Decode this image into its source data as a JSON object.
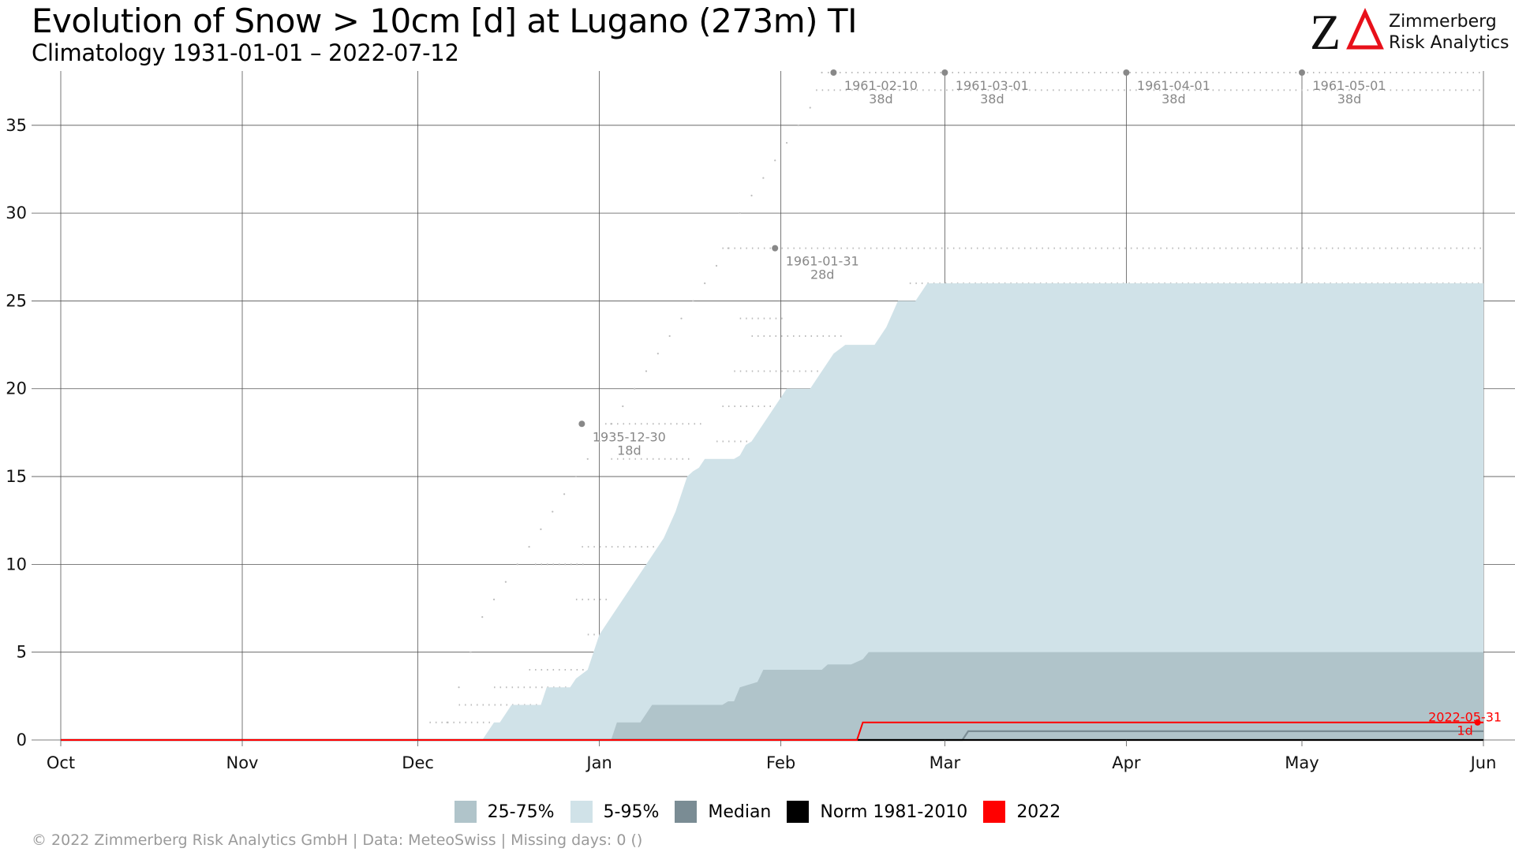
{
  "title": "Evolution of Snow > 10cm [d] at Lugano (273m) TI",
  "subtitle": "Climatology 1931-01-01 – 2022-07-12",
  "logo": {
    "mark": "ZΔ",
    "line1": "Zimmerberg",
    "line2": "Risk Analytics",
    "accent_color": "#e8101a"
  },
  "caption": "©  2022 Zimmerberg Risk Analytics GmbH | Data: MeteoSwiss | Missing days: 0 ()",
  "chart_data": {
    "type": "area",
    "xlabel": "",
    "ylabel": "",
    "x_ticks": [
      "Oct",
      "Nov",
      "Dec",
      "Jan",
      "Feb",
      "Mar",
      "Apr",
      "May",
      "Jun"
    ],
    "x_tick_days": [
      0,
      31,
      61,
      92,
      123,
      151,
      182,
      212,
      243
    ],
    "xlim": [
      0,
      243
    ],
    "ylim": [
      0,
      38
    ],
    "y_ticks": [
      0,
      5,
      10,
      15,
      20,
      25,
      30,
      35
    ],
    "grid": true,
    "legend_position": "bottom",
    "colors": {
      "p5_95": "#d0e2e8",
      "p25_75": "#b0c4ca",
      "median": "#7a8c94",
      "norm": "#000000",
      "current": "#ff0000",
      "annotation": "#888888"
    },
    "legend": [
      {
        "label": "25-75%",
        "color": "#b0c4ca"
      },
      {
        "label": "5-95%",
        "color": "#d0e2e8"
      },
      {
        "label": "Median",
        "color": "#7a8c94"
      },
      {
        "label": "Norm 1981-2010",
        "color": "#000000"
      },
      {
        "label": "2022",
        "color": "#ff0000"
      }
    ],
    "series": [
      {
        "name": "5-95%",
        "kind": "band",
        "x": [
          72,
          73,
          74,
          75,
          76,
          77,
          78,
          79,
          80,
          82,
          83,
          84,
          85,
          87,
          88,
          90,
          91,
          92,
          93,
          95,
          97,
          99,
          101,
          103,
          105,
          107,
          108,
          109,
          110,
          111,
          112,
          113,
          114,
          115,
          116,
          117,
          118,
          119,
          120,
          121,
          122,
          123,
          124,
          125,
          126,
          128,
          129,
          130,
          132,
          134,
          136,
          139,
          141,
          143,
          146,
          148,
          150,
          151,
          152,
          243
        ],
        "lower": [
          0,
          0,
          0,
          0,
          0,
          0,
          0,
          0,
          0,
          0,
          0,
          0,
          0,
          0,
          0,
          0,
          0,
          0,
          0,
          0,
          0,
          0,
          0,
          0,
          0,
          0,
          0,
          0,
          0,
          0,
          0,
          0,
          0,
          0,
          0,
          0,
          0,
          0,
          0,
          0,
          0,
          0,
          0,
          0,
          0,
          0,
          0,
          0,
          0,
          0,
          0,
          0,
          0,
          0,
          0,
          0,
          0,
          0,
          0,
          0
        ],
        "upper": [
          0,
          0.5,
          1,
          1,
          1.5,
          2,
          2,
          2,
          2,
          2,
          3,
          3,
          3,
          3,
          3.5,
          4,
          5,
          6,
          6.5,
          7.5,
          8.5,
          9.5,
          10.5,
          11.5,
          13,
          15,
          15.3,
          15.5,
          16,
          16,
          16,
          16,
          16,
          16,
          16.2,
          16.8,
          17,
          17.5,
          18,
          18.5,
          19,
          19.5,
          20,
          20,
          20,
          20,
          20.5,
          21,
          22,
          22.5,
          22.5,
          22.5,
          23.5,
          25,
          25,
          26,
          26,
          26,
          26,
          26
        ]
      },
      {
        "name": "25-75%",
        "kind": "band",
        "x": [
          94,
          95,
          96,
          98,
          99,
          100,
          101,
          110,
          111,
          112,
          113,
          114,
          115,
          116,
          119,
          120,
          125,
          130,
          131,
          135,
          137,
          138,
          140,
          142,
          150,
          243
        ],
        "lower": [
          0,
          0,
          0,
          0,
          0,
          0,
          0,
          0,
          0,
          0,
          0,
          0,
          0,
          0,
          0,
          0,
          0,
          0,
          0,
          0,
          0,
          0,
          0,
          0,
          0,
          0
        ],
        "upper": [
          0,
          1,
          1,
          1,
          1,
          1.5,
          2,
          2,
          2,
          2,
          2,
          2.2,
          2.2,
          3,
          3.3,
          4,
          4,
          4,
          4.3,
          4.3,
          4.6,
          5,
          5,
          5,
          5,
          5
        ]
      },
      {
        "name": "Median",
        "x": [
          0,
          154,
          155,
          243
        ],
        "y": [
          0,
          0,
          0.5,
          0.5
        ]
      },
      {
        "name": "Norm 1981-2010",
        "x": [
          0,
          243
        ],
        "y": [
          0,
          0
        ]
      },
      {
        "name": "2022",
        "x": [
          0,
          136,
          137,
          243
        ],
        "y": [
          0,
          0,
          1,
          1
        ]
      }
    ],
    "record_levels": [
      {
        "y": 1,
        "x_start": 63,
        "x_end": 74
      },
      {
        "y": 2,
        "x_start": 68,
        "x_end": 82
      },
      {
        "y": 3,
        "x_start": 74,
        "x_end": 90
      },
      {
        "y": 4,
        "x_start": 80,
        "x_end": 90
      },
      {
        "y": 6,
        "x_start": 90,
        "x_end": 94
      },
      {
        "y": 8,
        "x_start": 88,
        "x_end": 94
      },
      {
        "y": 10,
        "x_start": 81,
        "x_end": 90
      },
      {
        "y": 11,
        "x_start": 89,
        "x_end": 108
      },
      {
        "y": 16,
        "x_start": 94,
        "x_end": 108
      },
      {
        "y": 17,
        "x_start": 112,
        "x_end": 121
      },
      {
        "y": 18,
        "x_start": 93,
        "x_end": 110
      },
      {
        "y": 19,
        "x_start": 113,
        "x_end": 125
      },
      {
        "y": 21,
        "x_start": 115,
        "x_end": 132
      },
      {
        "y": 23,
        "x_start": 118,
        "x_end": 134
      },
      {
        "y": 24,
        "x_start": 116,
        "x_end": 124
      },
      {
        "y": 26,
        "x_start": 145,
        "x_end": 243
      },
      {
        "y": 28,
        "x_start": 113,
        "x_end": 243
      },
      {
        "y": 37,
        "x_start": 129,
        "x_end": 243
      },
      {
        "y": 38,
        "x_start": 131,
        "x_end": 243
      }
    ],
    "record_curve": {
      "x": [
        66,
        68,
        70,
        72,
        74,
        76,
        78,
        80,
        82,
        84,
        86,
        88,
        90,
        92,
        94,
        96,
        98,
        100,
        102,
        104,
        106,
        108,
        110,
        112,
        114,
        116,
        118,
        120,
        122,
        124,
        126,
        128,
        130
      ],
      "y": [
        1,
        3,
        5,
        7,
        8,
        9,
        10,
        11,
        12,
        13,
        14,
        15,
        16,
        17,
        18,
        19,
        20,
        21,
        22,
        23,
        24,
        25,
        26,
        27,
        28,
        30,
        31,
        32,
        33,
        34,
        35,
        36,
        38
      ]
    },
    "annotations": [
      {
        "x": 89,
        "y": 18,
        "date": "1935-12-30",
        "value": "18d",
        "color": "#888888"
      },
      {
        "x": 122,
        "y": 28,
        "date": "1961-01-31",
        "value": "28d",
        "color": "#888888"
      },
      {
        "x": 132,
        "y": 38,
        "date": "1961-02-10",
        "value": "38d",
        "color": "#888888"
      },
      {
        "x": 151,
        "y": 38,
        "date": "1961-03-01",
        "value": "38d",
        "color": "#888888"
      },
      {
        "x": 182,
        "y": 38,
        "date": "1961-04-01",
        "value": "38d",
        "color": "#888888"
      },
      {
        "x": 212,
        "y": 38,
        "date": "1961-05-01",
        "value": "38d",
        "color": "#888888"
      },
      {
        "x": 242,
        "y": 1,
        "date": "2022-05-31",
        "value": "1d",
        "color": "#ff0000"
      }
    ]
  }
}
